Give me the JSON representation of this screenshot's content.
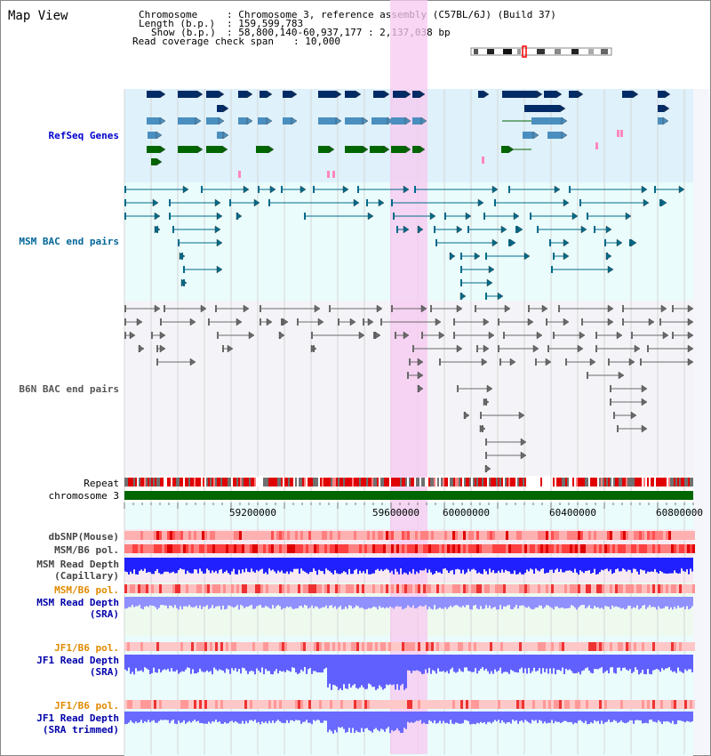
{
  "app": {
    "title": "Map View"
  },
  "info": {
    "chromosome_label": "Chromosome",
    "chromosome_value": ": Chromosome 3, reference assembly (C57BL/6J) (Build 37)",
    "length_label": "Length (b.p.)",
    "length_value": ": 159,599,783",
    "show_label": "Show (b.p.)",
    "show_value": ": 58,800,140-60,937,177 : 2,137,038 bp",
    "span_label": "Read coverage check span",
    "span_value": ": 10,000"
  },
  "tracks": {
    "refseq": "RefSeq Genes",
    "msm_bac": "MSM BAC end pairs",
    "b6n_bac": "B6N BAC end pairs",
    "repeat": "Repeat",
    "chromosome": "chromosome 3",
    "dbsnp": "dbSNP(Mouse)",
    "msm_b6_pol_1": "MSM/B6 pol.",
    "msm_read_depth_cap_1": "MSM Read Depth",
    "msm_read_depth_cap_2": "(Capillary)",
    "msm_b6_pol_2": "MSM/B6 pol.",
    "msm_read_depth_sra_1": "MSM Read Depth",
    "msm_read_depth_sra_2": "(SRA)",
    "jf1_b6_pol_1": "JF1/B6 pol.",
    "jf1_read_depth_sra_1": "JF1 Read Depth",
    "jf1_read_depth_sra_2": "(SRA)",
    "jf1_b6_pol_2": "JF1/B6 pol.",
    "jf1_read_depth_trim_1": "JF1 Read Depth",
    "jf1_read_depth_trim_2": "(SRA trimmed)"
  },
  "axis": {
    "ticks": [
      "59200000",
      "59600000",
      "60000000",
      "60400000",
      "60800000"
    ]
  },
  "colors": {
    "refseq_label": "#0000cc",
    "msm_label": "#006699",
    "b6n_label": "#555555",
    "orange_label": "#e08a00",
    "blue_label": "#0000aa",
    "highlight": "#f7c8f0"
  }
}
